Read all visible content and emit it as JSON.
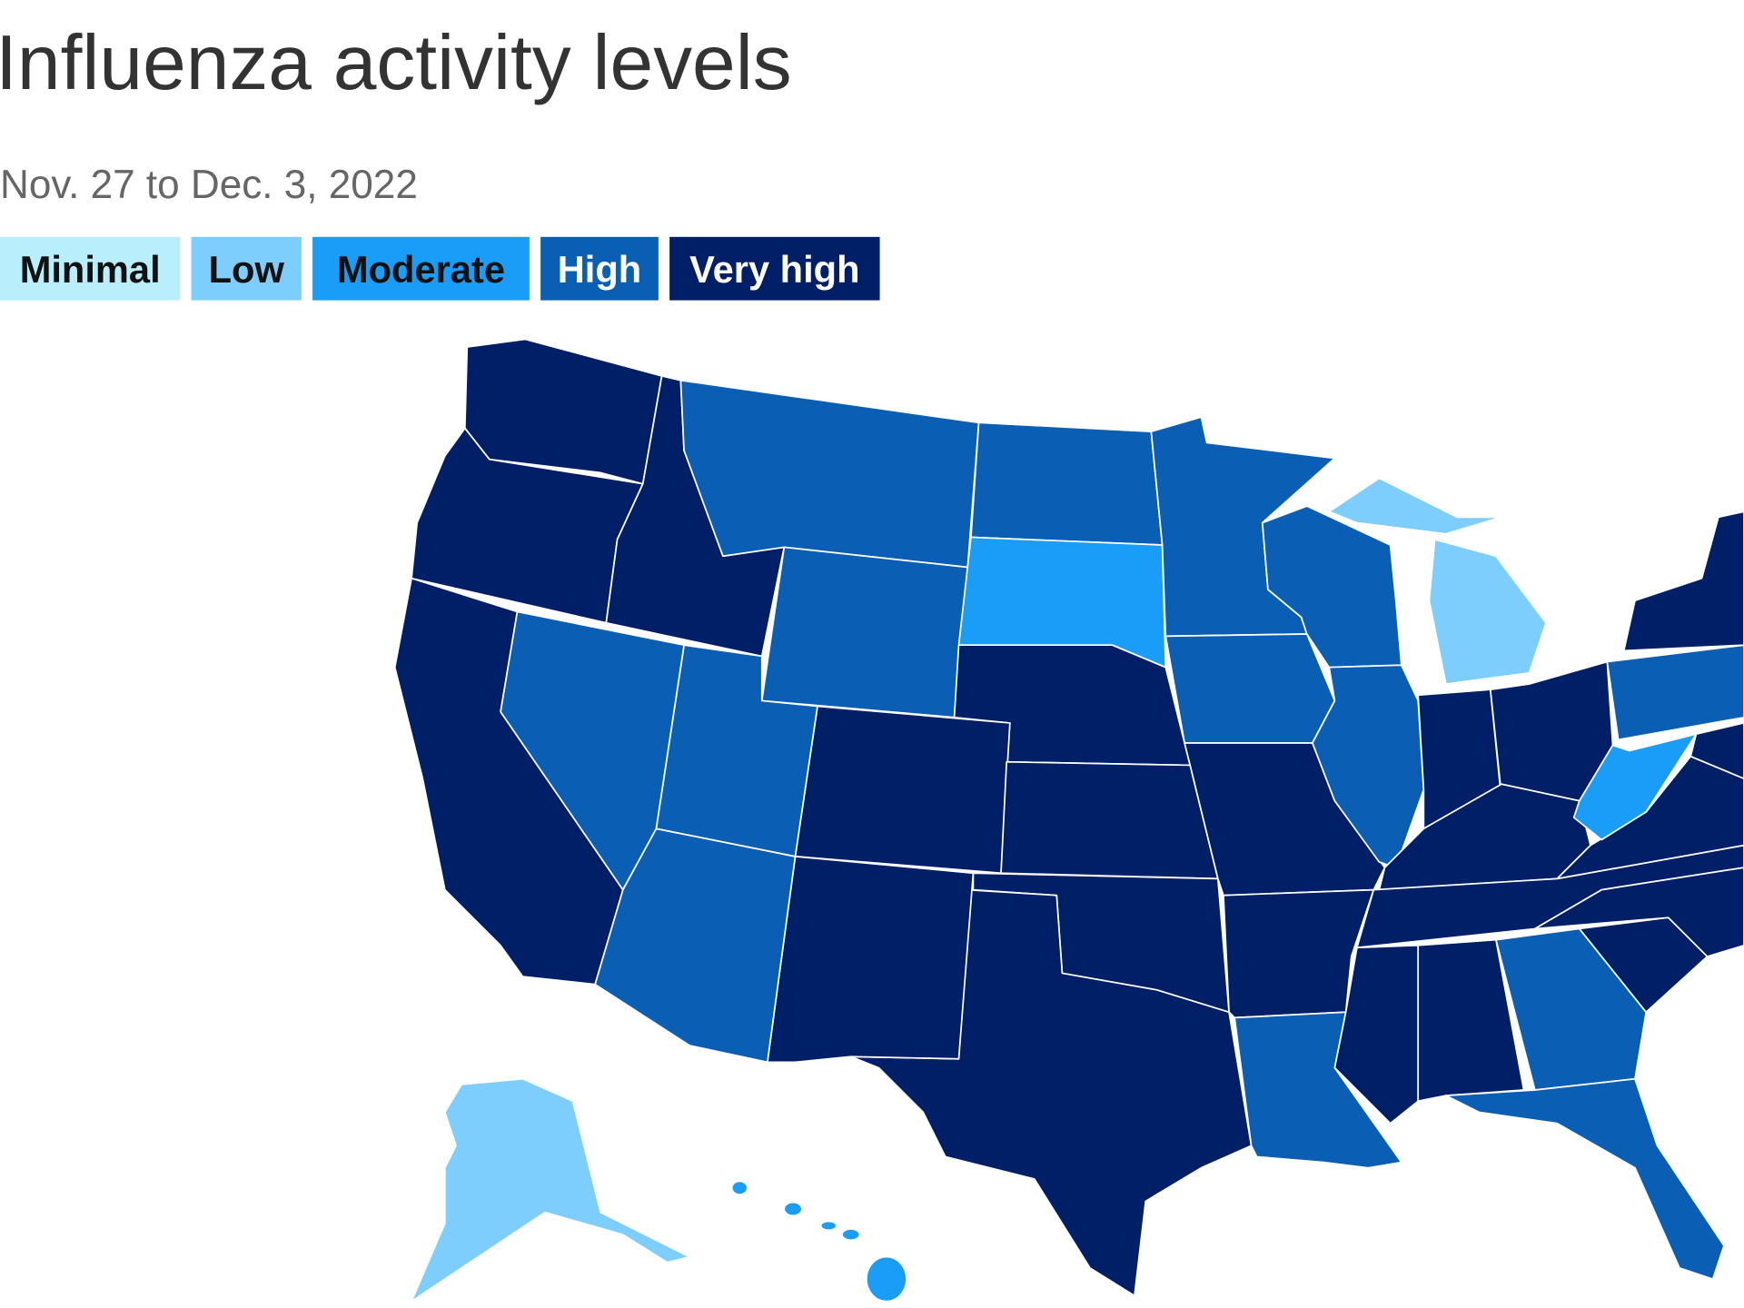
{
  "header": {
    "title": "Influenza activity levels",
    "subtitle": "Nov. 27 to Dec. 3, 2022"
  },
  "legend": [
    {
      "label": "Minimal",
      "color": "#b9effc"
    },
    {
      "label": "Low",
      "color": "#7dcefc"
    },
    {
      "label": "Moderate",
      "color": "#1a9df7"
    },
    {
      "label": "High",
      "color": "#0a5fb4"
    },
    {
      "label": "Very high",
      "color": "#001f66"
    }
  ]
}
